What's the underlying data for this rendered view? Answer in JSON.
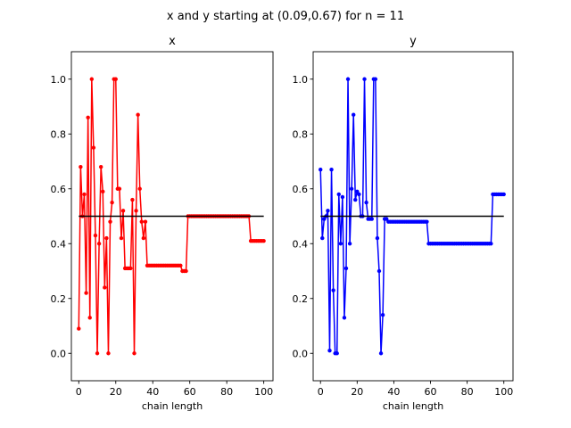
{
  "figure": {
    "title": "x and y starting at (0.09,0.67) for n = 11"
  },
  "chart_data": [
    {
      "type": "line",
      "title": "x",
      "xlabel": "chain length",
      "ylabel": "",
      "xlim": [
        -4,
        105
      ],
      "ylim": [
        -0.1,
        1.1
      ],
      "xticks": [
        0,
        20,
        40,
        60,
        80,
        100
      ],
      "yticks": [
        0.0,
        0.2,
        0.4,
        0.6,
        0.8,
        1.0
      ],
      "grid": false,
      "marker": "circle",
      "reference_line": {
        "y": 0.5,
        "x_range": [
          0,
          100
        ],
        "color": "#000000"
      },
      "series": [
        {
          "color": "#ff0000",
          "x": [
            0,
            1,
            2,
            3,
            4,
            5,
            6,
            7,
            8,
            9,
            10,
            11,
            12,
            13,
            14,
            15,
            16,
            17,
            18,
            19,
            20,
            21,
            22,
            23,
            24,
            25,
            26,
            27,
            28,
            29,
            30,
            31,
            32,
            33,
            34,
            35,
            36,
            37,
            38,
            39,
            40,
            41,
            42,
            43,
            44,
            45,
            46,
            47,
            48,
            49,
            50,
            51,
            52,
            53,
            54,
            55,
            56,
            57,
            58,
            59,
            60,
            61,
            62,
            63,
            64,
            65,
            66,
            67,
            68,
            69,
            70,
            71,
            72,
            73,
            74,
            75,
            76,
            77,
            78,
            79,
            80,
            81,
            82,
            83,
            84,
            85,
            86,
            87,
            88,
            89,
            90,
            91,
            92,
            93,
            94,
            95,
            96,
            97,
            98,
            99,
            100
          ],
          "y": [
            0.09,
            0.68,
            0.5,
            0.58,
            0.22,
            0.86,
            0.13,
            1.0,
            0.75,
            0.43,
            0.0,
            0.4,
            0.68,
            0.59,
            0.24,
            0.42,
            0.0,
            0.48,
            0.55,
            1.0,
            1.0,
            0.6,
            0.6,
            0.42,
            0.52,
            0.31,
            0.31,
            0.31,
            0.31,
            0.56,
            0.0,
            0.52,
            0.87,
            0.6,
            0.48,
            0.42,
            0.48,
            0.32,
            0.32,
            0.32,
            0.32,
            0.32,
            0.32,
            0.32,
            0.32,
            0.32,
            0.32,
            0.32,
            0.32,
            0.32,
            0.32,
            0.32,
            0.32,
            0.32,
            0.32,
            0.32,
            0.3,
            0.3,
            0.3,
            0.5,
            0.5,
            0.5,
            0.5,
            0.5,
            0.5,
            0.5,
            0.5,
            0.5,
            0.5,
            0.5,
            0.5,
            0.5,
            0.5,
            0.5,
            0.5,
            0.5,
            0.5,
            0.5,
            0.5,
            0.5,
            0.5,
            0.5,
            0.5,
            0.5,
            0.5,
            0.5,
            0.5,
            0.5,
            0.5,
            0.5,
            0.5,
            0.5,
            0.5,
            0.41,
            0.41,
            0.41,
            0.41,
            0.41,
            0.41,
            0.41,
            0.41
          ]
        }
      ]
    },
    {
      "type": "line",
      "title": "y",
      "xlabel": "chain length",
      "ylabel": "",
      "xlim": [
        -4,
        105
      ],
      "ylim": [
        -0.1,
        1.1
      ],
      "xticks": [
        0,
        20,
        40,
        60,
        80,
        100
      ],
      "yticks": [
        0.0,
        0.2,
        0.4,
        0.6,
        0.8,
        1.0
      ],
      "grid": false,
      "marker": "circle",
      "reference_line": {
        "y": 0.5,
        "x_range": [
          0,
          100
        ],
        "color": "#000000"
      },
      "series": [
        {
          "color": "#0000ff",
          "x": [
            0,
            1,
            2,
            3,
            4,
            5,
            6,
            7,
            8,
            9,
            10,
            11,
            12,
            13,
            14,
            15,
            16,
            17,
            18,
            19,
            20,
            21,
            22,
            23,
            24,
            25,
            26,
            27,
            28,
            29,
            30,
            31,
            32,
            33,
            34,
            35,
            36,
            37,
            38,
            39,
            40,
            41,
            42,
            43,
            44,
            45,
            46,
            47,
            48,
            49,
            50,
            51,
            52,
            53,
            54,
            55,
            56,
            57,
            58,
            59,
            60,
            61,
            62,
            63,
            64,
            65,
            66,
            67,
            68,
            69,
            70,
            71,
            72,
            73,
            74,
            75,
            76,
            77,
            78,
            79,
            80,
            81,
            82,
            83,
            84,
            85,
            86,
            87,
            88,
            89,
            90,
            91,
            92,
            93,
            94,
            95,
            96,
            97,
            98,
            99,
            100
          ],
          "y": [
            0.67,
            0.42,
            0.49,
            0.5,
            0.52,
            0.01,
            0.67,
            0.23,
            0.0,
            0.0,
            0.58,
            0.4,
            0.57,
            0.13,
            0.31,
            1.0,
            0.4,
            0.6,
            0.87,
            0.56,
            0.59,
            0.58,
            0.5,
            0.5,
            1.0,
            0.55,
            0.49,
            0.49,
            0.49,
            1.0,
            1.0,
            0.42,
            0.3,
            0.0,
            0.14,
            0.49,
            0.49,
            0.48,
            0.48,
            0.48,
            0.48,
            0.48,
            0.48,
            0.48,
            0.48,
            0.48,
            0.48,
            0.48,
            0.48,
            0.48,
            0.48,
            0.48,
            0.48,
            0.48,
            0.48,
            0.48,
            0.48,
            0.48,
            0.48,
            0.4,
            0.4,
            0.4,
            0.4,
            0.4,
            0.4,
            0.4,
            0.4,
            0.4,
            0.4,
            0.4,
            0.4,
            0.4,
            0.4,
            0.4,
            0.4,
            0.4,
            0.4,
            0.4,
            0.4,
            0.4,
            0.4,
            0.4,
            0.4,
            0.4,
            0.4,
            0.4,
            0.4,
            0.4,
            0.4,
            0.4,
            0.4,
            0.4,
            0.4,
            0.4,
            0.58,
            0.58,
            0.58,
            0.58,
            0.58,
            0.58,
            0.58
          ]
        }
      ]
    }
  ]
}
